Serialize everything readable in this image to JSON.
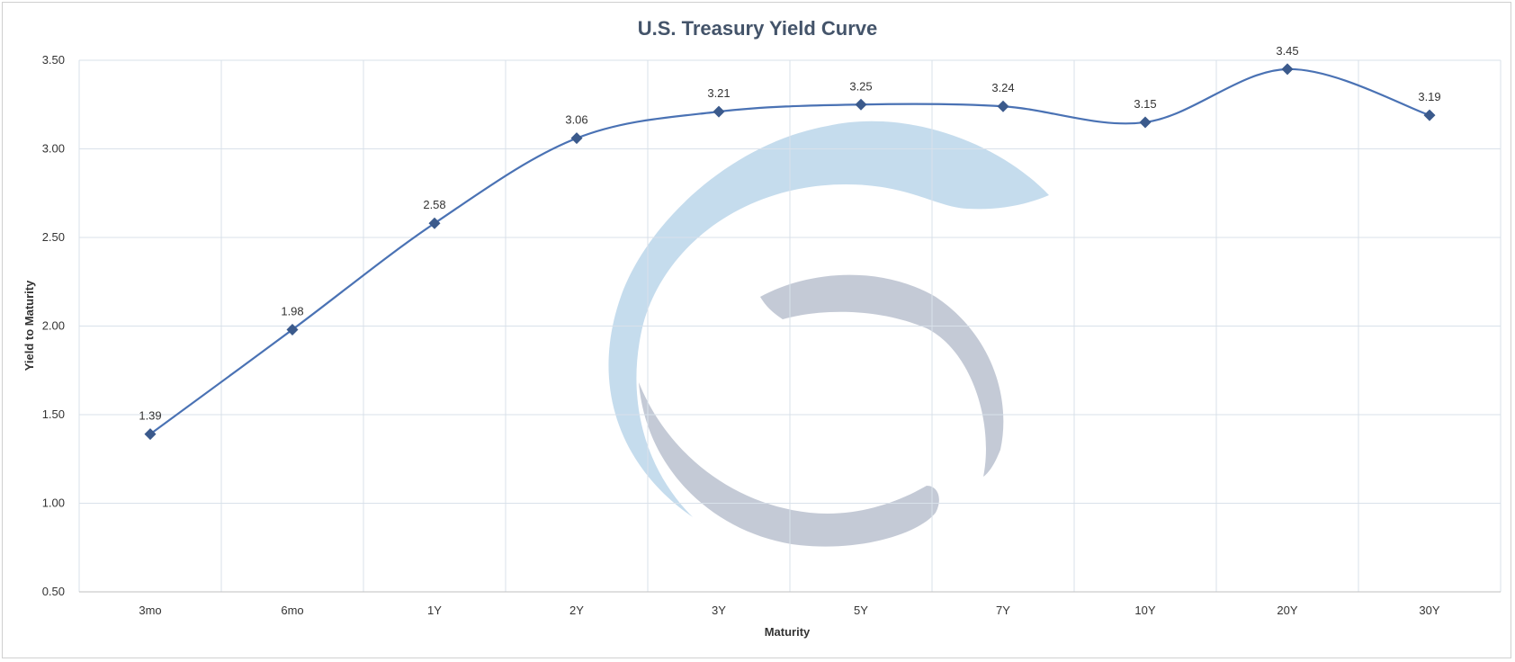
{
  "chart_data": {
    "type": "line",
    "title": "U.S. Treasury Yield Curve",
    "xlabel": "Maturity",
    "ylabel": "Yield to Maturity",
    "categories": [
      "3mo",
      "6mo",
      "1Y",
      "2Y",
      "3Y",
      "5Y",
      "7Y",
      "10Y",
      "20Y",
      "30Y"
    ],
    "series": [
      {
        "values": [
          1.39,
          1.98,
          2.58,
          3.06,
          3.21,
          3.25,
          3.24,
          3.15,
          3.45,
          3.19
        ]
      }
    ],
    "data_labels": [
      "1.39",
      "1.98",
      "2.58",
      "3.06",
      "3.21",
      "3.25",
      "3.24",
      "3.15",
      "3.45",
      "3.19"
    ],
    "ylim": [
      0.5,
      3.5
    ],
    "yticks": [
      "0.50",
      "1.00",
      "1.50",
      "2.00",
      "2.50",
      "3.00",
      "3.50"
    ],
    "grid": true,
    "legend": "none",
    "marker": "diamond",
    "smooth": true,
    "colors": {
      "line": "#4a72b4",
      "marker": "#3b5a8c",
      "grid": "#d9e1ea",
      "title": "#44546a"
    }
  },
  "watermark": {
    "description": "logo",
    "colors": [
      "#c5dced",
      "#c4cad6"
    ]
  }
}
